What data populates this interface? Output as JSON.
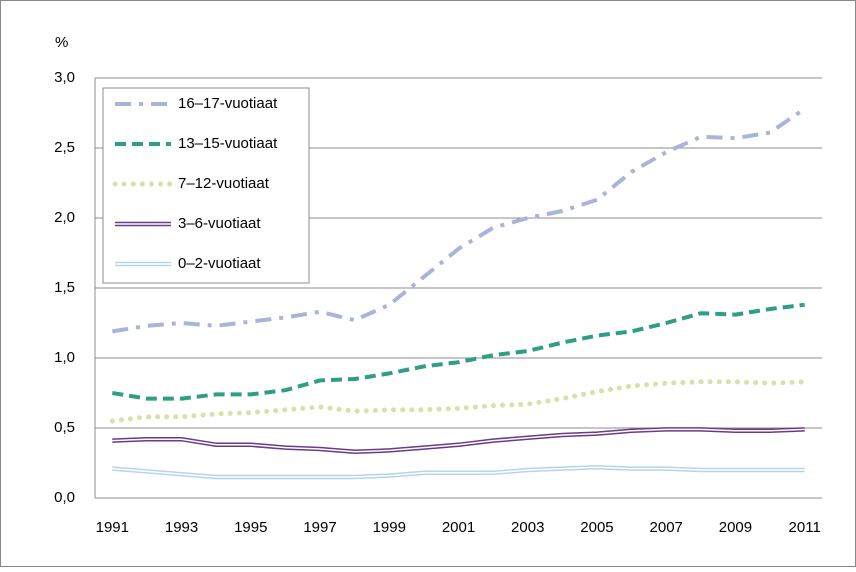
{
  "chart_data": {
    "type": "line",
    "y_unit": "%",
    "x": [
      1991,
      1992,
      1993,
      1994,
      1995,
      1996,
      1997,
      1998,
      1999,
      2000,
      2001,
      2002,
      2003,
      2004,
      2005,
      2006,
      2007,
      2008,
      2009,
      2010,
      2011
    ],
    "xlim": [
      1990.5,
      2011.5
    ],
    "xticks": [
      1991,
      1993,
      1995,
      1997,
      1999,
      2001,
      2003,
      2005,
      2007,
      2009,
      2011
    ],
    "ylim": [
      0,
      3
    ],
    "yticks": [
      {
        "value": 0,
        "label": "0,0"
      },
      {
        "value": 0.5,
        "label": "0,5"
      },
      {
        "value": 1,
        "label": "1,0"
      },
      {
        "value": 1.5,
        "label": "1,5"
      },
      {
        "value": 2,
        "label": "2,0"
      },
      {
        "value": 2.5,
        "label": "2,5"
      },
      {
        "value": 3,
        "label": "3,0"
      }
    ],
    "grid": true,
    "legend": "upper left",
    "series": [
      {
        "name": "16–17-vuotiaat",
        "color": "#aab3d9",
        "style": "dashdot",
        "values": [
          1.19,
          1.23,
          1.25,
          1.23,
          1.26,
          1.29,
          1.33,
          1.27,
          1.38,
          1.58,
          1.78,
          1.93,
          2.0,
          2.05,
          2.13,
          2.33,
          2.47,
          2.58,
          2.57,
          2.61,
          2.78
        ]
      },
      {
        "name": "13–15-vuotiaat",
        "color": "#2f9e87",
        "style": "dashed",
        "values": [
          0.75,
          0.71,
          0.71,
          0.74,
          0.74,
          0.77,
          0.84,
          0.85,
          0.89,
          0.94,
          0.97,
          1.02,
          1.05,
          1.11,
          1.16,
          1.19,
          1.25,
          1.32,
          1.31,
          1.35,
          1.38
        ]
      },
      {
        "name": "7–12-vuotiaat",
        "color": "#d6e2aa",
        "style": "dotted",
        "values": [
          0.55,
          0.58,
          0.58,
          0.6,
          0.61,
          0.63,
          0.65,
          0.62,
          0.63,
          0.63,
          0.64,
          0.66,
          0.67,
          0.71,
          0.76,
          0.8,
          0.82,
          0.83,
          0.83,
          0.82,
          0.83
        ]
      },
      {
        "name": "3–6-vuotiaat",
        "color": "#6b3a88",
        "style": "double",
        "values": [
          0.41,
          0.42,
          0.42,
          0.38,
          0.38,
          0.36,
          0.35,
          0.33,
          0.34,
          0.36,
          0.38,
          0.41,
          0.43,
          0.45,
          0.46,
          0.48,
          0.49,
          0.49,
          0.48,
          0.48,
          0.49
        ]
      },
      {
        "name": "0–2-vuotiaat",
        "color": "#b5d6ea",
        "style": "double",
        "values": [
          0.21,
          0.19,
          0.17,
          0.15,
          0.15,
          0.15,
          0.15,
          0.15,
          0.16,
          0.18,
          0.18,
          0.18,
          0.2,
          0.21,
          0.22,
          0.21,
          0.21,
          0.2,
          0.2,
          0.2,
          0.2
        ]
      }
    ]
  }
}
